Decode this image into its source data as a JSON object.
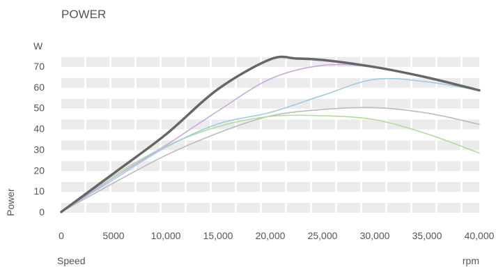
{
  "chart_data": {
    "type": "line",
    "title": "POWER",
    "unit_label": "W",
    "xlabel": "Speed",
    "xunit": "rpm",
    "ylabel": "Power",
    "xlim": [
      0,
      40000
    ],
    "ylim": [
      0,
      70
    ],
    "xticks": [
      0,
      5000,
      10000,
      15000,
      20000,
      25000,
      30000,
      35000,
      40000
    ],
    "xtick_labels": [
      "0",
      "5000",
      "10,000",
      "15,000",
      "20,000",
      "25,000",
      "30,000",
      "35,000",
      "40,000"
    ],
    "yticks": [
      0,
      10,
      20,
      30,
      40,
      50,
      60,
      70
    ],
    "ytick_labels": [
      "0",
      "10",
      "20",
      "30",
      "40",
      "50",
      "60",
      "70"
    ],
    "grid": true,
    "legend": "none",
    "series": [
      {
        "color": "#666666",
        "x": [
          0,
          5000,
          10000,
          15000,
          20000,
          22500,
          25000,
          30000,
          35000,
          40000
        ],
        "y": [
          0,
          18.5,
          37.2,
          59,
          73.3,
          73.7,
          73,
          69.6,
          64.6,
          58.4
        ]
      },
      {
        "color": "#c9a9db",
        "x": [
          0,
          5000,
          10000,
          15000,
          20000,
          25000,
          30000,
          35000,
          40000
        ],
        "y": [
          0,
          16.5,
          32,
          48.5,
          63.9,
          70.4,
          69.5,
          64.5,
          58.4
        ]
      },
      {
        "color": "#9dcce2",
        "x": [
          0,
          5000,
          10000,
          15000,
          20000,
          25000,
          30000,
          35000,
          40000
        ],
        "y": [
          0,
          15.6,
          31,
          42.3,
          47.8,
          56,
          63.7,
          62.5,
          58.4
        ]
      },
      {
        "color": "#b3dc94",
        "x": [
          0,
          5000,
          10000,
          15000,
          20000,
          25000,
          30000,
          35000,
          40000
        ],
        "y": [
          0,
          17.4,
          31.5,
          41,
          45.9,
          46.2,
          44.3,
          37.5,
          28.3
        ]
      },
      {
        "color": "#bbbbbb",
        "x": [
          0,
          5000,
          10000,
          15000,
          20000,
          25000,
          30000,
          35000,
          40000
        ],
        "y": [
          0,
          13.9,
          27.2,
          37.9,
          46.1,
          49.2,
          50.1,
          47.5,
          42.1
        ]
      }
    ]
  }
}
